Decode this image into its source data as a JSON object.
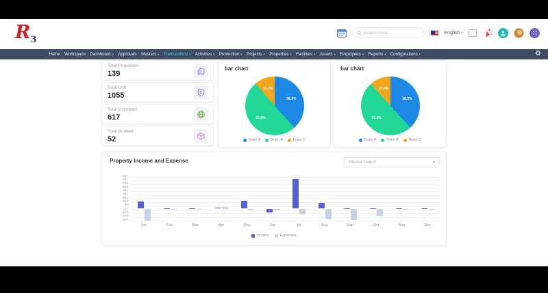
{
  "header": {
    "logo_main": "R",
    "logo_sub": "3",
    "search_placeholder": "Search here...",
    "language": "English"
  },
  "nav": {
    "items": [
      {
        "label": "Home",
        "dropdown": false,
        "active": false
      },
      {
        "label": "Workspace",
        "dropdown": false,
        "active": false
      },
      {
        "label": "Dashboard",
        "dropdown": true,
        "active": false
      },
      {
        "label": "Approvals",
        "dropdown": false,
        "active": false
      },
      {
        "label": "Masters",
        "dropdown": true,
        "active": false
      },
      {
        "label": "Transactions",
        "dropdown": true,
        "active": true
      },
      {
        "label": "Activities",
        "dropdown": true,
        "active": false
      },
      {
        "label": "Production",
        "dropdown": true,
        "active": false
      },
      {
        "label": "Projects",
        "dropdown": true,
        "active": false
      },
      {
        "label": "Properties",
        "dropdown": true,
        "active": false
      },
      {
        "label": "Facilities",
        "dropdown": true,
        "active": false
      },
      {
        "label": "Assets",
        "dropdown": true,
        "active": false
      },
      {
        "label": "Employees",
        "dropdown": true,
        "active": false
      },
      {
        "label": "Reports",
        "dropdown": true,
        "active": false
      },
      {
        "label": "Configurations",
        "dropdown": true,
        "active": false
      }
    ]
  },
  "stats": [
    {
      "label": "Total Properties",
      "value": "139",
      "icon": "building-icon",
      "color": "#7b7fd6"
    },
    {
      "label": "Total Unit",
      "value": "1055",
      "icon": "shield-icon",
      "color": "#8a6fd8"
    },
    {
      "label": "Total Occupied",
      "value": "617",
      "icon": "globe-icon",
      "color": "#76b441"
    },
    {
      "label": "Total Booked",
      "value": "52",
      "icon": "cube-icon",
      "color": "#c583c8"
    }
  ],
  "income_expense": {
    "select_placeholder": "Please Select"
  },
  "chart_data": [
    {
      "type": "pie",
      "title": "bar chart",
      "labels": [
        "Team A",
        "Team B",
        "Team C"
      ],
      "values": [
        38.3,
        50.4,
        11.3
      ],
      "colors": [
        "#1e88e5",
        "#22d896",
        "#f2a71b"
      ],
      "legend_position": "bottom"
    },
    {
      "type": "pie",
      "title": "bar chart",
      "labels": [
        "Team A",
        "Team B",
        "Team C"
      ],
      "values": [
        38.3,
        50.1,
        11.6
      ],
      "colors": [
        "#1e88e5",
        "#22d896",
        "#f2a71b"
      ],
      "legend_position": "bottom"
    },
    {
      "type": "bar",
      "title": "Property Income and Expense",
      "categories": [
        "Jan",
        "Feb",
        "Mar",
        "Apr",
        "May",
        "Jun",
        "Jul",
        "Aug",
        "Sep",
        "Oct",
        "Nov",
        "Dec"
      ],
      "series": [
        {
          "name": "Income",
          "color": "#5560d8",
          "values": [
            190,
            8,
            6,
            35,
            200,
            -100,
            780,
            150,
            18,
            5,
            6,
            8
          ]
        },
        {
          "name": "Expenses",
          "color": "#c9d3e8",
          "values": [
            -310,
            -12,
            -28,
            45,
            -38,
            -48,
            -160,
            -270,
            -300,
            -180,
            -12,
            -15
          ]
        }
      ],
      "ylim": [
        -315,
        837
      ],
      "yticks": [
        837,
        741,
        645,
        549,
        453,
        357,
        261,
        165,
        69,
        -27,
        -123,
        -219,
        -315
      ],
      "grid": true,
      "legend_position": "bottom"
    }
  ]
}
